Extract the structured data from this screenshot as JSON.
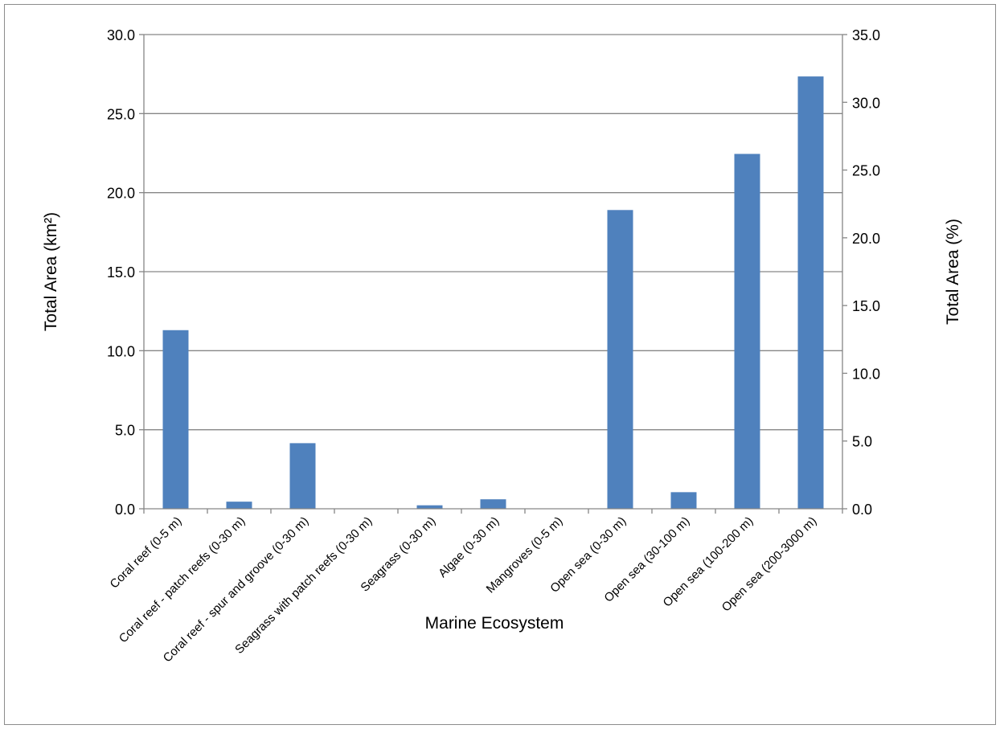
{
  "chart_data": {
    "type": "bar",
    "categories": [
      "Coral reef (0-5 m)",
      "Coral reef - patch reefs (0-30 m)",
      "Coral reef - spur and groove (0-30 m)",
      "Seagrass with patch reefs (0-30 m)",
      "Seagrass (0-30 m)",
      "Algae (0-30 m)",
      "Mangroves (0-5 m)",
      "Open sea (0-30 m)",
      "Open sea (30-100 m)",
      "Open sea (100-200 m)",
      "Open sea (200-3000 m)"
    ],
    "values": [
      11.3,
      0.45,
      4.15,
      0.0,
      0.22,
      0.6,
      0.0,
      18.9,
      1.05,
      22.45,
      27.35
    ],
    "xlabel": "Marine Ecosystem",
    "ylabel": "Total Area (km²)",
    "ylabel_right": "Total Area (%)",
    "ylim": [
      0,
      30
    ],
    "ylim_right": [
      0,
      35
    ],
    "yticks": [
      "0.0",
      "5.0",
      "10.0",
      "15.0",
      "20.0",
      "25.0",
      "30.0"
    ],
    "yticks_right": [
      "0.0",
      "5.0",
      "10.0",
      "15.0",
      "20.0",
      "25.0",
      "30.0",
      "35.0"
    ],
    "grid": true,
    "bar_color": "#4f81bd",
    "grid_color": "#868686"
  }
}
